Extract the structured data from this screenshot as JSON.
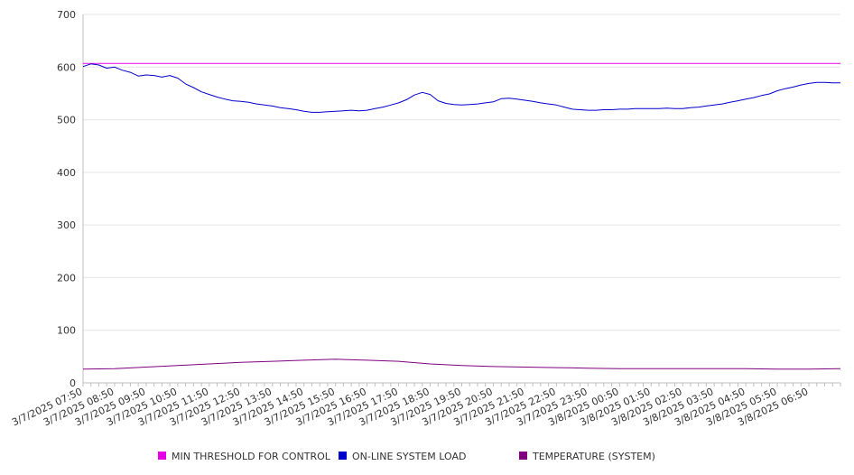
{
  "chart_data": {
    "type": "line",
    "title": "",
    "xlabel": "",
    "ylabel": "",
    "ylim": [
      0,
      700
    ],
    "yticks": [
      0,
      100,
      200,
      300,
      400,
      500,
      600,
      700
    ],
    "grid": true,
    "legend_position": "bottom",
    "x_start": "3/7/2025 07:50",
    "x_end": "3/8/2025 07:50",
    "x_tick_labels": [
      "3/7/2025 07:50",
      "3/7/2025 08:50",
      "3/7/2025 09:50",
      "3/7/2025 10:50",
      "3/7/2025 11:50",
      "3/7/2025 12:50",
      "3/7/2025 13:50",
      "3/7/2025 14:50",
      "3/7/2025 15:50",
      "3/7/2025 16:50",
      "3/7/2025 17:50",
      "3/7/2025 18:50",
      "3/7/2025 19:50",
      "3/7/2025 20:50",
      "3/7/2025 21:50",
      "3/7/2025 22:50",
      "3/7/2025 23:50",
      "3/8/2025 00:50",
      "3/8/2025 01:50",
      "3/8/2025 02:50",
      "3/8/2025 03:50",
      "3/8/2025 04:50",
      "3/8/2025 05:50",
      "3/8/2025 06:50"
    ],
    "series": [
      {
        "name": "MIN THRESHOLD FOR CONTROL",
        "color": "#e600e6",
        "x": [
          "3/7/2025 07:50",
          "3/8/2025 07:50"
        ],
        "values": [
          607,
          607
        ]
      },
      {
        "name": "ON-LINE SYSTEM LOAD",
        "color": "#0000cc",
        "x": [
          "3/7/2025 07:50",
          "3/7/2025 08:05",
          "3/7/2025 08:20",
          "3/7/2025 08:35",
          "3/7/2025 08:50",
          "3/7/2025 09:05",
          "3/7/2025 09:20",
          "3/7/2025 09:35",
          "3/7/2025 09:50",
          "3/7/2025 10:05",
          "3/7/2025 10:20",
          "3/7/2025 10:35",
          "3/7/2025 10:50",
          "3/7/2025 11:05",
          "3/7/2025 11:20",
          "3/7/2025 11:35",
          "3/7/2025 11:50",
          "3/7/2025 12:05",
          "3/7/2025 12:20",
          "3/7/2025 12:35",
          "3/7/2025 12:50",
          "3/7/2025 13:05",
          "3/7/2025 13:20",
          "3/7/2025 13:35",
          "3/7/2025 13:50",
          "3/7/2025 14:05",
          "3/7/2025 14:20",
          "3/7/2025 14:35",
          "3/7/2025 14:50",
          "3/7/2025 15:05",
          "3/7/2025 15:20",
          "3/7/2025 15:35",
          "3/7/2025 15:50",
          "3/7/2025 16:05",
          "3/7/2025 16:20",
          "3/7/2025 16:35",
          "3/7/2025 16:50",
          "3/7/2025 17:05",
          "3/7/2025 17:20",
          "3/7/2025 17:35",
          "3/7/2025 17:50",
          "3/7/2025 18:05",
          "3/7/2025 18:20",
          "3/7/2025 18:35",
          "3/7/2025 18:50",
          "3/7/2025 19:05",
          "3/7/2025 19:20",
          "3/7/2025 19:35",
          "3/7/2025 19:50",
          "3/7/2025 20:05",
          "3/7/2025 20:20",
          "3/7/2025 20:35",
          "3/7/2025 20:50",
          "3/7/2025 21:05",
          "3/7/2025 21:20",
          "3/7/2025 21:35",
          "3/7/2025 21:50",
          "3/7/2025 22:05",
          "3/7/2025 22:20",
          "3/7/2025 22:35",
          "3/7/2025 22:50",
          "3/7/2025 23:05",
          "3/7/2025 23:20",
          "3/7/2025 23:35",
          "3/7/2025 23:50",
          "3/8/2025 00:05",
          "3/8/2025 00:20",
          "3/8/2025 00:35",
          "3/8/2025 00:50",
          "3/8/2025 01:05",
          "3/8/2025 01:20",
          "3/8/2025 01:35",
          "3/8/2025 01:50",
          "3/8/2025 02:05",
          "3/8/2025 02:20",
          "3/8/2025 02:35",
          "3/8/2025 02:50",
          "3/8/2025 03:05",
          "3/8/2025 03:20",
          "3/8/2025 03:35",
          "3/8/2025 03:50",
          "3/8/2025 04:05",
          "3/8/2025 04:20",
          "3/8/2025 04:35",
          "3/8/2025 04:50",
          "3/8/2025 05:05",
          "3/8/2025 05:20",
          "3/8/2025 05:35",
          "3/8/2025 05:50",
          "3/8/2025 06:05",
          "3/8/2025 06:20",
          "3/8/2025 06:35",
          "3/8/2025 06:50",
          "3/8/2025 07:05",
          "3/8/2025 07:20",
          "3/8/2025 07:35",
          "3/8/2025 07:50"
        ],
        "values": [
          601,
          606,
          604,
          598,
          600,
          594,
          590,
          583,
          585,
          584,
          581,
          584,
          579,
          568,
          561,
          553,
          548,
          543,
          539,
          536,
          535,
          533,
          530,
          528,
          526,
          523,
          521,
          519,
          516,
          514,
          514,
          515,
          516,
          517,
          518,
          517,
          518,
          521,
          524,
          528,
          532,
          538,
          547,
          552,
          548,
          536,
          531,
          529,
          528,
          529,
          530,
          532,
          534,
          540,
          541,
          539,
          537,
          535,
          532,
          530,
          528,
          524,
          520,
          519,
          518,
          518,
          519,
          519,
          520,
          520,
          521,
          521,
          521,
          521,
          522,
          521,
          521,
          523,
          524,
          526,
          528,
          530,
          533,
          536,
          539,
          542,
          546,
          549,
          555,
          559,
          562,
          566,
          569,
          571,
          571,
          570,
          570
        ]
      },
      {
        "name": "TEMPERATURE (SYSTEM)",
        "color": "#800080",
        "x": [
          "3/7/2025 07:50",
          "3/7/2025 08:50",
          "3/7/2025 09:50",
          "3/7/2025 10:50",
          "3/7/2025 11:50",
          "3/7/2025 12:50",
          "3/7/2025 13:50",
          "3/7/2025 14:50",
          "3/7/2025 15:50",
          "3/7/2025 16:50",
          "3/7/2025 17:50",
          "3/7/2025 18:50",
          "3/7/2025 19:50",
          "3/7/2025 20:50",
          "3/7/2025 21:50",
          "3/7/2025 22:50",
          "3/7/2025 23:50",
          "3/8/2025 00:50",
          "3/8/2025 01:50",
          "3/8/2025 02:50",
          "3/8/2025 03:50",
          "3/8/2025 04:50",
          "3/8/2025 05:50",
          "3/8/2025 06:50",
          "3/8/2025 07:50"
        ],
        "values": [
          26,
          27,
          30,
          33,
          36,
          39,
          41,
          43,
          45,
          43,
          41,
          36,
          33,
          31,
          30,
          29,
          28,
          27,
          27,
          27,
          27,
          27,
          26,
          26,
          27
        ]
      }
    ]
  }
}
